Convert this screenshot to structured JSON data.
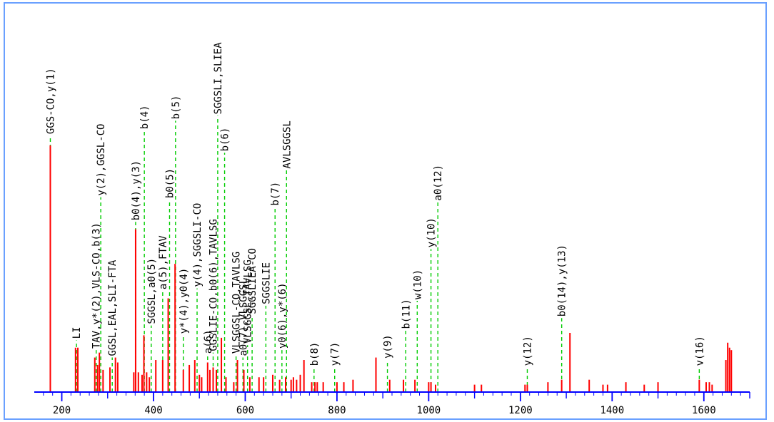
{
  "chart_data": {
    "type": "bar",
    "xlim": [
      140,
      1700
    ],
    "ylim": [
      0,
      100
    ],
    "x_ticks": [
      200,
      400,
      600,
      800,
      1000,
      1200,
      1400,
      1600
    ],
    "x_tick_labels": [
      "200",
      "400",
      "600",
      "800",
      "1000",
      "1200",
      "1400",
      "1600"
    ],
    "colors": {
      "peak": "#ff0000",
      "axis": "#0000ff",
      "annotation_line": "#00cc00",
      "frame": "#6aa0ff",
      "text": "#000000"
    },
    "peaks": [
      {
        "x": 175,
        "y": 100
      },
      {
        "x": 230,
        "y": 18
      },
      {
        "x": 235,
        "y": 18
      },
      {
        "x": 272,
        "y": 14
      },
      {
        "x": 278,
        "y": 11
      },
      {
        "x": 282,
        "y": 16
      },
      {
        "x": 290,
        "y": 9
      },
      {
        "x": 305,
        "y": 10
      },
      {
        "x": 317,
        "y": 14
      },
      {
        "x": 322,
        "y": 12
      },
      {
        "x": 357,
        "y": 8
      },
      {
        "x": 361,
        "y": 66
      },
      {
        "x": 367,
        "y": 8
      },
      {
        "x": 375,
        "y": 7
      },
      {
        "x": 379,
        "y": 23
      },
      {
        "x": 385,
        "y": 8
      },
      {
        "x": 391,
        "y": 6
      },
      {
        "x": 405,
        "y": 13
      },
      {
        "x": 420,
        "y": 13
      },
      {
        "x": 432,
        "y": 38
      },
      {
        "x": 447,
        "y": 52
      },
      {
        "x": 465,
        "y": 9
      },
      {
        "x": 478,
        "y": 11
      },
      {
        "x": 490,
        "y": 13
      },
      {
        "x": 500,
        "y": 7
      },
      {
        "x": 505,
        "y": 6
      },
      {
        "x": 518,
        "y": 12
      },
      {
        "x": 523,
        "y": 9
      },
      {
        "x": 530,
        "y": 10
      },
      {
        "x": 537,
        "y": 9
      },
      {
        "x": 548,
        "y": 22
      },
      {
        "x": 558,
        "y": 6
      },
      {
        "x": 575,
        "y": 4
      },
      {
        "x": 583,
        "y": 13
      },
      {
        "x": 597,
        "y": 9
      },
      {
        "x": 610,
        "y": 6
      },
      {
        "x": 630,
        "y": 6
      },
      {
        "x": 640,
        "y": 6
      },
      {
        "x": 660,
        "y": 7
      },
      {
        "x": 675,
        "y": 5
      },
      {
        "x": 688,
        "y": 6
      },
      {
        "x": 700,
        "y": 5
      },
      {
        "x": 705,
        "y": 6
      },
      {
        "x": 712,
        "y": 5
      },
      {
        "x": 720,
        "y": 7
      },
      {
        "x": 728,
        "y": 13
      },
      {
        "x": 745,
        "y": 4
      },
      {
        "x": 752,
        "y": 4
      },
      {
        "x": 757,
        "y": 4
      },
      {
        "x": 770,
        "y": 4
      },
      {
        "x": 800,
        "y": 4
      },
      {
        "x": 815,
        "y": 4
      },
      {
        "x": 835,
        "y": 5
      },
      {
        "x": 885,
        "y": 14
      },
      {
        "x": 915,
        "y": 5
      },
      {
        "x": 945,
        "y": 5
      },
      {
        "x": 970,
        "y": 5
      },
      {
        "x": 1000,
        "y": 4
      },
      {
        "x": 1005,
        "y": 4
      },
      {
        "x": 1015,
        "y": 3
      },
      {
        "x": 1100,
        "y": 3
      },
      {
        "x": 1115,
        "y": 3
      },
      {
        "x": 1210,
        "y": 3
      },
      {
        "x": 1215,
        "y": 3
      },
      {
        "x": 1260,
        "y": 4
      },
      {
        "x": 1290,
        "y": 5
      },
      {
        "x": 1308,
        "y": 24
      },
      {
        "x": 1350,
        "y": 5
      },
      {
        "x": 1380,
        "y": 3
      },
      {
        "x": 1390,
        "y": 3
      },
      {
        "x": 1430,
        "y": 4
      },
      {
        "x": 1470,
        "y": 3
      },
      {
        "x": 1500,
        "y": 4
      },
      {
        "x": 1590,
        "y": 5
      },
      {
        "x": 1605,
        "y": 4
      },
      {
        "x": 1612,
        "y": 4
      },
      {
        "x": 1618,
        "y": 3
      },
      {
        "x": 1648,
        "y": 13
      },
      {
        "x": 1652,
        "y": 20
      },
      {
        "x": 1656,
        "y": 18
      },
      {
        "x": 1660,
        "y": 17
      }
    ],
    "annotations": [
      {
        "x": 175,
        "label": "GGS-CO,y(1)",
        "label_y": 104
      },
      {
        "x": 232,
        "label": "LI",
        "label_y": 21
      },
      {
        "x": 275,
        "label": "TAV,y*(2),VLS-CO,b(3)",
        "label_y": 17
      },
      {
        "x": 285,
        "label": "y(2),GGSL-CO",
        "label_y": 79
      },
      {
        "x": 310,
        "label": "GGSL,EAL,SLI-FTA",
        "label_y": 14
      },
      {
        "x": 361,
        "label": "b0(4),y(3)",
        "label_y": 69
      },
      {
        "x": 380,
        "label": "b(4)",
        "label_y": 106
      },
      {
        "x": 395,
        "label": "SGGSL,a0(5)",
        "label_y": 27
      },
      {
        "x": 420,
        "label": "a(5),FTAV",
        "label_y": 41
      },
      {
        "x": 435,
        "label": "b0(5)",
        "label_y": 78
      },
      {
        "x": 448,
        "label": "b(5)",
        "label_y": 110
      },
      {
        "x": 465,
        "label": "y*(4),y0(4)",
        "label_y": 23
      },
      {
        "x": 495,
        "label": "y(4),SGGSLI-CO",
        "label_y": 42
      },
      {
        "x": 518,
        "label": "a(6)",
        "label_y": 15
      },
      {
        "x": 530,
        "label": "GGSLIE-CO,b0(6),TAVLSG",
        "label_y": 16
      },
      {
        "x": 540,
        "label": "SGGSLI,SLIEA",
        "label_y": 112
      },
      {
        "x": 555,
        "label": "b(6)",
        "label_y": 97
      },
      {
        "x": 580,
        "label": "VLSGGSL-CO,TAVLSG",
        "label_y": 15
      },
      {
        "x": 595,
        "label": "a0(7),VLSGGSL",
        "label_y": 14
      },
      {
        "x": 605,
        "label": "VLSGGSL,TAVLSG",
        "label_y": 19
      },
      {
        "x": 615,
        "label": "SGGSLIEA-CO",
        "label_y": 31
      },
      {
        "x": 645,
        "label": "SGGSLIE",
        "label_y": 35
      },
      {
        "x": 665,
        "label": "b(7)",
        "label_y": 75
      },
      {
        "x": 680,
        "label": "y0(6),y*(6)",
        "label_y": 17
      },
      {
        "x": 690,
        "label": "AVLSGGSL",
        "label_y": 90
      },
      {
        "x": 750,
        "label": "b(8)",
        "label_y": 10
      },
      {
        "x": 795,
        "label": "y(7)",
        "label_y": 10
      },
      {
        "x": 910,
        "label": "y(9)",
        "label_y": 13
      },
      {
        "x": 950,
        "label": "b(11)",
        "label_y": 25
      },
      {
        "x": 975,
        "label": "w(10)",
        "label_y": 37
      },
      {
        "x": 1005,
        "label": "y(10)",
        "label_y": 58
      },
      {
        "x": 1020,
        "label": "a0(12)",
        "label_y": 77
      },
      {
        "x": 1215,
        "label": "y(12)",
        "label_y": 10
      },
      {
        "x": 1290,
        "label": "b0(14),y(13)",
        "label_y": 30
      },
      {
        "x": 1590,
        "label": "v(16)",
        "label_y": 10
      }
    ]
  }
}
